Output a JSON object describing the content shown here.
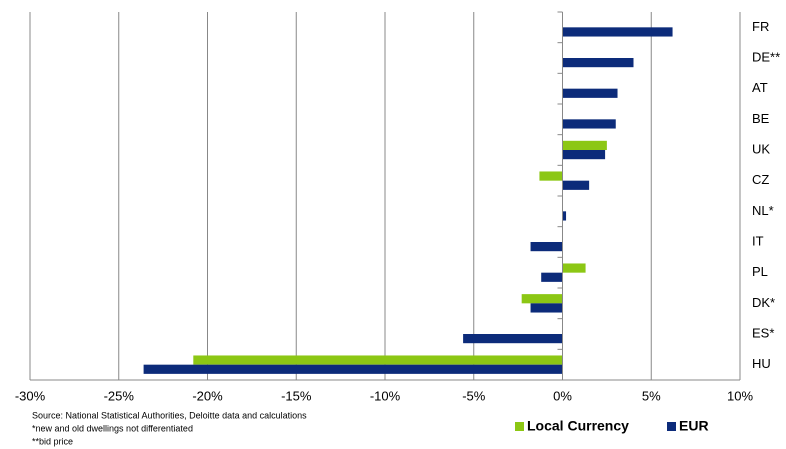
{
  "chart_data": {
    "type": "hbar",
    "categories": [
      "FR",
      "DE**",
      "AT",
      "BE",
      "UK",
      "CZ",
      "NL*",
      "IT",
      "PL",
      "DK*",
      "ES*",
      "HU"
    ],
    "series": [
      {
        "name": "Local Currency",
        "color": "#8cc714",
        "values": [
          null,
          null,
          null,
          null,
          2.5,
          -1.3,
          null,
          null,
          1.3,
          -2.3,
          null,
          -20.8
        ]
      },
      {
        "name": "EUR",
        "color": "#0c2b7a",
        "values": [
          6.2,
          4.0,
          3.1,
          3.0,
          2.4,
          1.5,
          0.2,
          -1.8,
          -1.2,
          -1.8,
          -5.6,
          -23.6
        ]
      }
    ],
    "xlim": [
      -30,
      10
    ],
    "xticks": [
      {
        "value": -30,
        "label": "-30%"
      },
      {
        "value": -25,
        "label": "-25%"
      },
      {
        "value": -20,
        "label": "-20%"
      },
      {
        "value": -15,
        "label": "-15%"
      },
      {
        "value": -10,
        "label": "-10%"
      },
      {
        "value": -5,
        "label": "-5%"
      },
      {
        "value": 0,
        "label": "0%"
      },
      {
        "value": 5,
        "label": "5%"
      },
      {
        "value": 10,
        "label": "10%"
      }
    ],
    "grid": true,
    "notes": [
      "Source: National Statistical Authorities, Deloitte  data and calculations",
      "*new and old dwellings not differentiated",
      "**bid price"
    ]
  }
}
